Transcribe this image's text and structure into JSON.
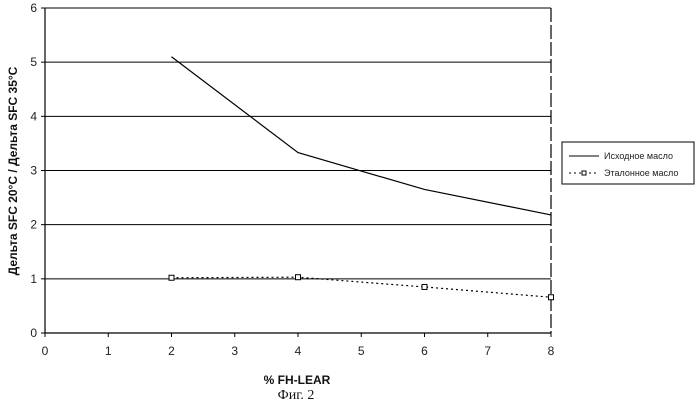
{
  "chart_data": {
    "type": "line",
    "xlabel": "% FH-LEAR",
    "ylabel": "Дельта SFC 20°C / Дельта SFC 35°C",
    "caption": "Фиг. 2",
    "xlim": [
      0,
      8
    ],
    "ylim": [
      0,
      6
    ],
    "xticks": [
      0,
      1,
      2,
      3,
      4,
      5,
      6,
      7,
      8
    ],
    "yticks": [
      0,
      1,
      2,
      3,
      4,
      5,
      6
    ],
    "grid": "horizontal",
    "legend_position": "right",
    "series": [
      {
        "name": "Исходное масло",
        "style": "solid",
        "marker": "none",
        "color": "#000000",
        "x": [
          2,
          4,
          6,
          8
        ],
        "y": [
          5.1,
          3.33,
          2.65,
          2.18
        ]
      },
      {
        "name": "Эталонное масло",
        "style": "dotted",
        "marker": "square",
        "color": "#000000",
        "x": [
          2,
          4,
          6,
          8
        ],
        "y": [
          1.02,
          1.03,
          0.85,
          0.66
        ]
      }
    ]
  }
}
